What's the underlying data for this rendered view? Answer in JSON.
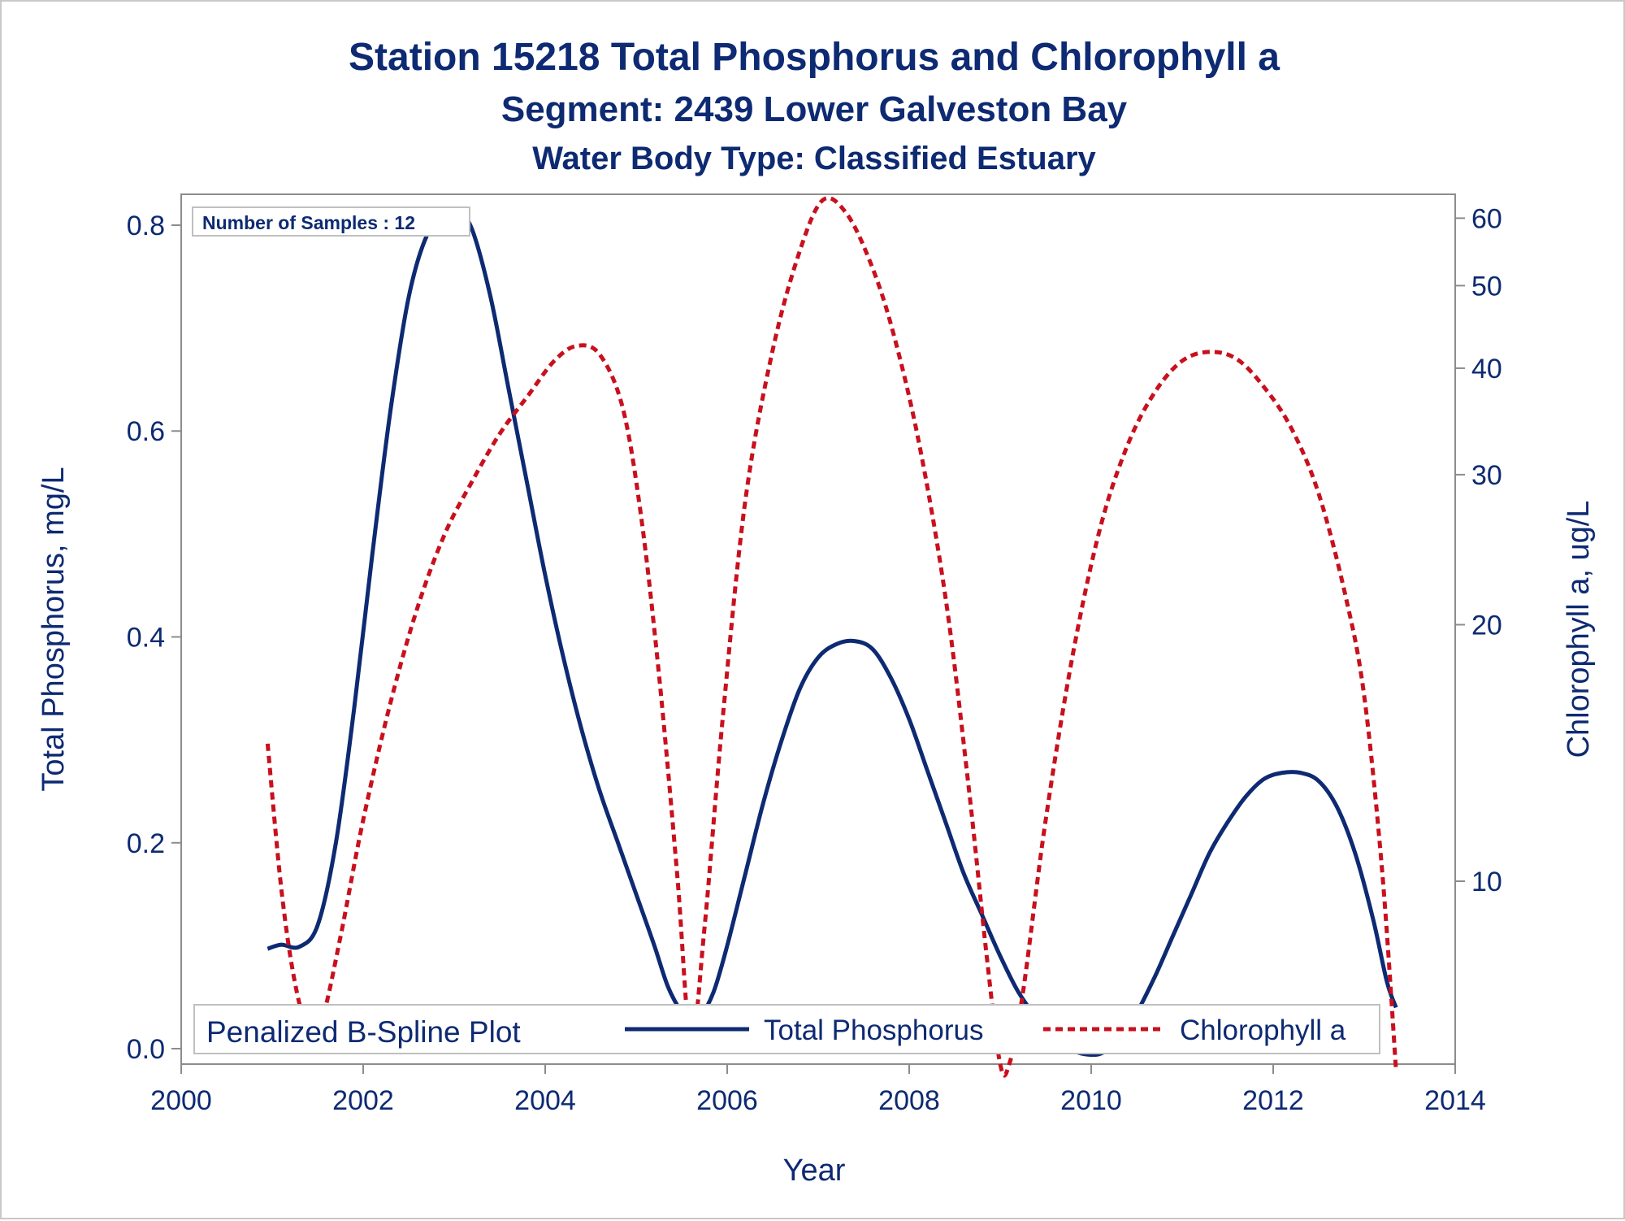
{
  "chart_data": {
    "type": "line",
    "title": "Station 15218  Total Phosphorus and Chlorophyll a",
    "subtitle": "Segment: 2439  Lower Galveston Bay",
    "subtitle2": "Water Body Type: Classified Estuary",
    "xlabel": "Year",
    "ylabel": "Total Phosphorus, mg/L",
    "y2label": "Chlorophyll a, ug/L",
    "xlim": [
      2000,
      2014
    ],
    "ylim": [
      -0.015,
      0.83
    ],
    "y2lim": [
      6.1,
      64
    ],
    "y2scale": "log",
    "x_ticks": [
      "2000",
      "2002",
      "2004",
      "2006",
      "2008",
      "2010",
      "2012",
      "2014"
    ],
    "y_ticks": [
      "0.0",
      "0.2",
      "0.4",
      "0.6",
      "0.8"
    ],
    "y2_ticks": [
      "10",
      "20",
      "30",
      "40",
      "50",
      "60"
    ],
    "inset_label": "Number of Samples : 12",
    "legend_title": "Penalized B-Spline Plot",
    "legend_position": "bottom-inside",
    "grid": false,
    "series": [
      {
        "name": "Total Phosphorus",
        "axis": "left",
        "color": "#0d2a72",
        "dash": "solid",
        "points": [
          [
            2000.95,
            0.097
          ],
          [
            2001.1,
            0.101
          ],
          [
            2001.3,
            0.099
          ],
          [
            2001.5,
            0.12
          ],
          [
            2001.7,
            0.2
          ],
          [
            2001.9,
            0.33
          ],
          [
            2002.1,
            0.48
          ],
          [
            2002.3,
            0.62
          ],
          [
            2002.5,
            0.73
          ],
          [
            2002.7,
            0.79
          ],
          [
            2002.9,
            0.81
          ],
          [
            2003.05,
            0.813
          ],
          [
            2003.2,
            0.795
          ],
          [
            2003.4,
            0.73
          ],
          [
            2003.6,
            0.64
          ],
          [
            2003.8,
            0.55
          ],
          [
            2004.0,
            0.46
          ],
          [
            2004.2,
            0.38
          ],
          [
            2004.4,
            0.31
          ],
          [
            2004.6,
            0.25
          ],
          [
            2004.8,
            0.2
          ],
          [
            2005.0,
            0.15
          ],
          [
            2005.2,
            0.1
          ],
          [
            2005.35,
            0.06
          ],
          [
            2005.5,
            0.035
          ],
          [
            2005.6,
            0.025
          ],
          [
            2005.7,
            0.03
          ],
          [
            2005.85,
            0.055
          ],
          [
            2006.0,
            0.1
          ],
          [
            2006.2,
            0.17
          ],
          [
            2006.4,
            0.24
          ],
          [
            2006.6,
            0.3
          ],
          [
            2006.8,
            0.35
          ],
          [
            2007.0,
            0.38
          ],
          [
            2007.2,
            0.393
          ],
          [
            2007.4,
            0.396
          ],
          [
            2007.6,
            0.388
          ],
          [
            2007.8,
            0.36
          ],
          [
            2008.0,
            0.32
          ],
          [
            2008.2,
            0.27
          ],
          [
            2008.4,
            0.22
          ],
          [
            2008.6,
            0.17
          ],
          [
            2008.8,
            0.13
          ],
          [
            2009.0,
            0.09
          ],
          [
            2009.2,
            0.055
          ],
          [
            2009.4,
            0.03
          ],
          [
            2009.6,
            0.01
          ],
          [
            2009.8,
            -0.002
          ],
          [
            2010.0,
            -0.006
          ],
          [
            2010.15,
            -0.003
          ],
          [
            2010.3,
            0.01
          ],
          [
            2010.5,
            0.035
          ],
          [
            2010.7,
            0.07
          ],
          [
            2010.9,
            0.11
          ],
          [
            2011.1,
            0.15
          ],
          [
            2011.3,
            0.19
          ],
          [
            2011.5,
            0.22
          ],
          [
            2011.7,
            0.245
          ],
          [
            2011.9,
            0.262
          ],
          [
            2012.1,
            0.268
          ],
          [
            2012.3,
            0.268
          ],
          [
            2012.5,
            0.26
          ],
          [
            2012.7,
            0.235
          ],
          [
            2012.9,
            0.19
          ],
          [
            2013.1,
            0.125
          ],
          [
            2013.25,
            0.065
          ],
          [
            2013.35,
            0.04
          ]
        ]
      },
      {
        "name": "Chlorophyll a",
        "axis": "right",
        "color": "#c8101e",
        "dash": "dotted",
        "points": [
          [
            2000.95,
            14.5
          ],
          [
            2001.1,
            9.8
          ],
          [
            2001.25,
            7.6
          ],
          [
            2001.4,
            6.7
          ],
          [
            2001.55,
            6.9
          ],
          [
            2001.75,
            8.6
          ],
          [
            2002.0,
            11.8
          ],
          [
            2002.3,
            16.2
          ],
          [
            2002.6,
            21.0
          ],
          [
            2002.9,
            25.6
          ],
          [
            2003.2,
            29.5
          ],
          [
            2003.5,
            33.5
          ],
          [
            2003.8,
            37.0
          ],
          [
            2004.1,
            40.8
          ],
          [
            2004.35,
            42.5
          ],
          [
            2004.6,
            41.5
          ],
          [
            2004.85,
            36.0
          ],
          [
            2005.05,
            27.0
          ],
          [
            2005.25,
            17.5
          ],
          [
            2005.45,
            10.2
          ],
          [
            2005.6,
            6.5
          ],
          [
            2005.75,
            8.8
          ],
          [
            2005.95,
            15.5
          ],
          [
            2006.2,
            28.0
          ],
          [
            2006.5,
            42.0
          ],
          [
            2006.8,
            55.0
          ],
          [
            2007.05,
            63.0
          ],
          [
            2007.3,
            61.0
          ],
          [
            2007.55,
            54.0
          ],
          [
            2007.8,
            45.0
          ],
          [
            2008.1,
            33.0
          ],
          [
            2008.4,
            21.5
          ],
          [
            2008.65,
            13.0
          ],
          [
            2008.85,
            8.2
          ],
          [
            2009.0,
            6.1
          ],
          [
            2009.1,
            6.1
          ],
          [
            2009.25,
            7.4
          ],
          [
            2009.5,
            11.8
          ],
          [
            2009.8,
            18.5
          ],
          [
            2010.1,
            26.0
          ],
          [
            2010.4,
            32.5
          ],
          [
            2010.7,
            37.5
          ],
          [
            2011.0,
            40.8
          ],
          [
            2011.3,
            41.8
          ],
          [
            2011.6,
            41.0
          ],
          [
            2011.9,
            38.0
          ],
          [
            2012.2,
            34.0
          ],
          [
            2012.5,
            28.5
          ],
          [
            2012.8,
            21.5
          ],
          [
            2013.0,
            16.5
          ],
          [
            2013.2,
            10.2
          ],
          [
            2013.35,
            6.0
          ]
        ]
      }
    ]
  }
}
